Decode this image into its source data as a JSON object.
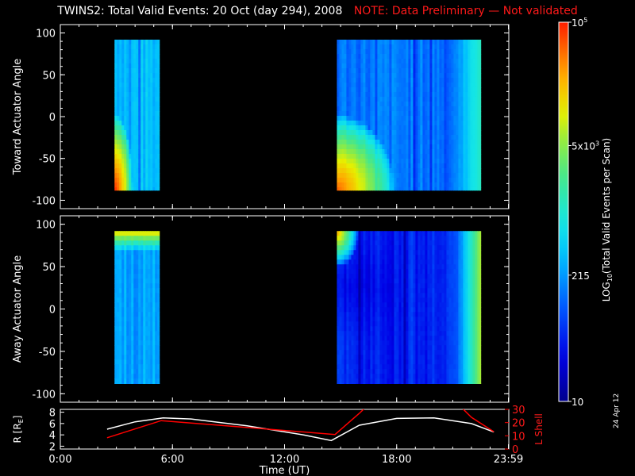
{
  "title": "TWINS2: Total Valid Events: 20 Oct (day 294), 2008",
  "note": "NOTE: Data Preliminary — Not validated",
  "date_stamp": "24 Apr 12",
  "colors": {
    "note": "#ff1a1a",
    "background": "#000000",
    "axes": "#ffffff",
    "l_shell_line": "#ff0000",
    "r_line": "#ffffff"
  },
  "chart_data": [
    {
      "type": "heatmap",
      "name": "toward",
      "ylabel": "Toward Actuator Angle",
      "ylim": [
        -110,
        110
      ],
      "yticks": [
        100,
        50,
        0,
        -50,
        -100
      ],
      "xlim": [
        0,
        24
      ],
      "blocks": [
        {
          "x_start": 2.9,
          "x_end": 5.3,
          "y_start": -88,
          "y_end": 92,
          "base_level": 2.55,
          "hot_corner": "bottom-left",
          "hot_level": 4.9
        },
        {
          "x_start": 14.8,
          "x_end": 22.5,
          "y_start": -88,
          "y_end": 92,
          "base_level": 2.15,
          "hot_corner": "bottom-left",
          "hot_level": 4.7,
          "right_edge_level": 3.1
        }
      ]
    },
    {
      "type": "heatmap",
      "name": "away",
      "ylabel": "Away Actuator Angle",
      "ylim": [
        -110,
        110
      ],
      "yticks": [
        100,
        50,
        0,
        -50,
        -100
      ],
      "xlim": [
        0,
        24
      ],
      "blocks": [
        {
          "x_start": 2.9,
          "x_end": 5.3,
          "y_start": -88,
          "y_end": 92,
          "base_level": 2.4,
          "hot_corner": "top",
          "hot_level": 4.0
        },
        {
          "x_start": 14.8,
          "x_end": 22.5,
          "y_start": -88,
          "y_end": 92,
          "base_level": 1.7,
          "hot_corner": "top-left",
          "hot_level": 4.3,
          "right_edge_level": 3.8
        }
      ]
    },
    {
      "type": "line",
      "name": "orbit",
      "ylabel_left": "R [R",
      "ylabel_left_sub": "E",
      "ylabel_right": "L Shell",
      "ylim_left": [
        1.5,
        8.5
      ],
      "yticks_left": [
        2,
        4,
        6,
        8
      ],
      "ylim_right": [
        0,
        30
      ],
      "yticks_right": [
        30,
        20,
        10,
        0
      ],
      "xlim": [
        0,
        24
      ],
      "xticks": [
        "0:00",
        "6:00",
        "12:00",
        "18:00",
        "23:59"
      ],
      "xtick_values": [
        0,
        6,
        12,
        18,
        23.98
      ],
      "xlabel": "Time (UT)",
      "series": [
        {
          "key": "R",
          "axis": "left",
          "color": "#ffffff",
          "x": [
            2.5,
            4.0,
            5.5,
            7.0,
            10.0,
            13.0,
            14.5,
            16.0,
            18.0,
            20.0,
            22.0,
            23.2
          ],
          "y": [
            5.0,
            6.3,
            7.0,
            6.8,
            5.6,
            4.0,
            3.0,
            5.7,
            6.9,
            7.0,
            6.0,
            4.5
          ]
        },
        {
          "key": "L",
          "axis": "right",
          "color": "#ff0000",
          "x": [
            2.5,
            5.4,
            14.7,
            16.0,
            16.3
          ],
          "y": [
            8.5,
            21.5,
            11.0,
            27.0,
            31.0
          ]
        },
        {
          "key": "L2",
          "axis": "right",
          "color": "#ff0000",
          "x": [
            21.5,
            22.0,
            23.2
          ],
          "y": [
            31.0,
            24.0,
            13.0
          ]
        }
      ]
    },
    {
      "type": "colorbar",
      "label": "LOG",
      "label_sub": "10",
      "label_rest": "(Total Valid Events per Scan)",
      "range_log": [
        1.0,
        5.0
      ],
      "ticks": [
        {
          "value_log": 1.0,
          "label": "10"
        },
        {
          "value_log": 2.332,
          "label": "215"
        },
        {
          "value_log": 3.699,
          "label": "5x10",
          "sup": "3"
        },
        {
          "value_log": 5.0,
          "label": "10",
          "sup": "5"
        }
      ]
    }
  ]
}
